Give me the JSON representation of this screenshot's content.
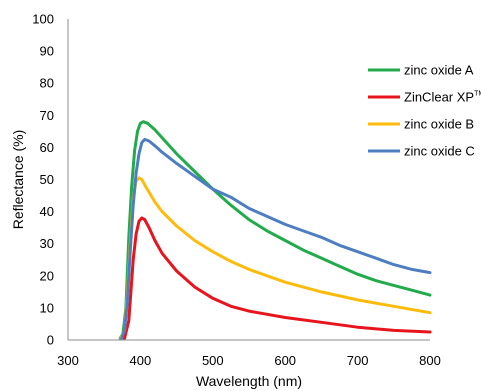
{
  "chart_data": {
    "type": "line",
    "xlabel": "Wavelength (nm)",
    "ylabel": "Reflectance (%)",
    "xlim": [
      300,
      800
    ],
    "ylim": [
      0,
      100
    ],
    "x_ticks": [
      300,
      400,
      500,
      600,
      700,
      800
    ],
    "y_ticks": [
      0,
      10,
      20,
      30,
      40,
      50,
      60,
      70,
      80,
      90,
      100
    ],
    "grid": false,
    "legend_position": "right",
    "series": [
      {
        "name": "zinc oxide A",
        "color": "#22ab4b",
        "points": [
          [
            372,
            0.5
          ],
          [
            376,
            2
          ],
          [
            380,
            10
          ],
          [
            384,
            32
          ],
          [
            388,
            48
          ],
          [
            392,
            59
          ],
          [
            396,
            65
          ],
          [
            400,
            67.5
          ],
          [
            404,
            68
          ],
          [
            410,
            67.5
          ],
          [
            420,
            65.5
          ],
          [
            430,
            63
          ],
          [
            450,
            58
          ],
          [
            475,
            52.5
          ],
          [
            500,
            47
          ],
          [
            525,
            42
          ],
          [
            550,
            37.5
          ],
          [
            575,
            34
          ],
          [
            600,
            31
          ],
          [
            625,
            28
          ],
          [
            650,
            25.5
          ],
          [
            675,
            23
          ],
          [
            700,
            20.5
          ],
          [
            725,
            18.5
          ],
          [
            750,
            17
          ],
          [
            775,
            15.5
          ],
          [
            800,
            14
          ]
        ]
      },
      {
        "name": "ZinClear XP",
        "name_sup": "TM",
        "color": "#e8141b",
        "points": [
          [
            378,
            0.5
          ],
          [
            384,
            6
          ],
          [
            390,
            25
          ],
          [
            394,
            33
          ],
          [
            398,
            37
          ],
          [
            402,
            38
          ],
          [
            406,
            37.5
          ],
          [
            412,
            35
          ],
          [
            420,
            31
          ],
          [
            430,
            27
          ],
          [
            450,
            21.5
          ],
          [
            475,
            16.5
          ],
          [
            500,
            13
          ],
          [
            525,
            10.5
          ],
          [
            550,
            9
          ],
          [
            575,
            8
          ],
          [
            600,
            7
          ],
          [
            650,
            5.5
          ],
          [
            700,
            4
          ],
          [
            750,
            3
          ],
          [
            800,
            2.5
          ]
        ]
      },
      {
        "name": "zinc oxide B",
        "color": "#fdbb0c",
        "points": [
          [
            373,
            0.5
          ],
          [
            378,
            3
          ],
          [
            382,
            14
          ],
          [
            386,
            30
          ],
          [
            390,
            44
          ],
          [
            394,
            49.5
          ],
          [
            398,
            50.5
          ],
          [
            402,
            50
          ],
          [
            408,
            47.5
          ],
          [
            420,
            43
          ],
          [
            430,
            40
          ],
          [
            450,
            35.5
          ],
          [
            475,
            31
          ],
          [
            500,
            27.5
          ],
          [
            525,
            24.5
          ],
          [
            550,
            22
          ],
          [
            575,
            20
          ],
          [
            600,
            18
          ],
          [
            650,
            15
          ],
          [
            700,
            12.5
          ],
          [
            750,
            10.5
          ],
          [
            800,
            8.5
          ]
        ]
      },
      {
        "name": "zinc oxide C",
        "color": "#4e7ec2",
        "points": [
          [
            374,
            0.5
          ],
          [
            378,
            3
          ],
          [
            382,
            12
          ],
          [
            386,
            28
          ],
          [
            390,
            42
          ],
          [
            394,
            52
          ],
          [
            398,
            58
          ],
          [
            402,
            61.5
          ],
          [
            406,
            62.5
          ],
          [
            412,
            62
          ],
          [
            420,
            60.5
          ],
          [
            430,
            58.5
          ],
          [
            450,
            55
          ],
          [
            475,
            51
          ],
          [
            500,
            47
          ],
          [
            525,
            44.5
          ],
          [
            550,
            41
          ],
          [
            575,
            38.5
          ],
          [
            600,
            36
          ],
          [
            625,
            34
          ],
          [
            650,
            32
          ],
          [
            675,
            29.5
          ],
          [
            700,
            27.5
          ],
          [
            725,
            25.5
          ],
          [
            750,
            23.5
          ],
          [
            775,
            22
          ],
          [
            800,
            21
          ]
        ]
      }
    ]
  }
}
